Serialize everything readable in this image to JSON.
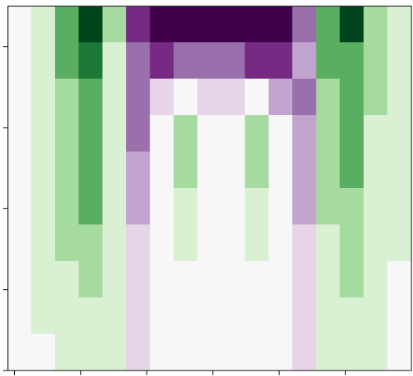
{
  "chart_data": {
    "type": "contourf",
    "xlim": [
      -0.1,
      6
    ],
    "xticks": [
      0,
      1,
      2,
      3,
      4,
      5
    ],
    "ylim": [
      0,
      4.5
    ],
    "yticks": [
      0,
      1,
      2,
      3,
      4
    ],
    "levels": [
      -1.1,
      -0.9,
      -0.7,
      -0.5,
      -0.3,
      -0.1,
      0.1,
      0.3,
      0.5,
      0.7,
      0.9,
      1.1
    ],
    "colors": [
      "#40004b",
      "#762a83",
      "#9970ab",
      "#c2a5cf",
      "#e7d4e8",
      "#f7f7f7",
      "#d9f0d3",
      "#a6dba0",
      "#5aae61",
      "#1b7837",
      "#00441b"
    ],
    "z": [
      [
        0,
        0.2,
        0.5,
        0.9,
        0.3,
        -0.9,
        -1.0,
        -1.0,
        -1.0,
        -1.0,
        -1.0,
        -1.0,
        -0.6,
        0.6,
        0.9,
        0.3,
        0.1
      ],
      [
        0,
        0.2,
        0.5,
        0.7,
        0.2,
        -0.7,
        -0.8,
        -0.7,
        -0.6,
        -0.7,
        -0.8,
        -0.8,
        -0.5,
        0.5,
        0.6,
        0.3,
        0.1
      ],
      [
        0,
        0.2,
        0.4,
        0.6,
        0.2,
        -0.6,
        -0.3,
        0,
        -0.2,
        -0.2,
        0,
        -0.4,
        -0.6,
        0.4,
        0.5,
        0.3,
        0.1
      ],
      [
        0,
        0.2,
        0.4,
        0.6,
        0.1,
        -0.6,
        -0.1,
        0.3,
        -0.1,
        -0.1,
        0.3,
        -0.1,
        -0.5,
        0.3,
        0.5,
        0.2,
        0.1
      ],
      [
        0,
        0.2,
        0.4,
        0.5,
        0.1,
        -0.5,
        -0.1,
        0.3,
        0,
        0,
        0.3,
        0,
        -0.5,
        0.3,
        0.5,
        0.2,
        0.1
      ],
      [
        0,
        0.1,
        0.3,
        0.5,
        0.1,
        -0.4,
        0,
        0.2,
        0,
        0,
        0.2,
        0,
        -0.4,
        0.3,
        0.4,
        0.2,
        0.1
      ],
      [
        0,
        0.1,
        0.3,
        0.4,
        0.1,
        -0.3,
        0,
        0.1,
        0,
        0,
        0.1,
        0,
        -0.3,
        0.2,
        0.3,
        0.2,
        0.1
      ],
      [
        0,
        0.1,
        0.2,
        0.3,
        0.1,
        -0.3,
        0,
        0,
        0,
        0,
        0,
        -0.1,
        -0.3,
        0.2,
        0.3,
        0.1,
        0
      ],
      [
        0,
        0.1,
        0.2,
        0.2,
        0.1,
        -0.3,
        0,
        0,
        0,
        0,
        0,
        -0.1,
        -0.2,
        0.2,
        0.2,
        0.1,
        0
      ],
      [
        0,
        0,
        0.1,
        0.2,
        0.1,
        -0.2,
        0,
        0,
        0,
        0,
        0,
        -0.1,
        -0.2,
        0.1,
        0.2,
        0.1,
        0
      ]
    ]
  }
}
